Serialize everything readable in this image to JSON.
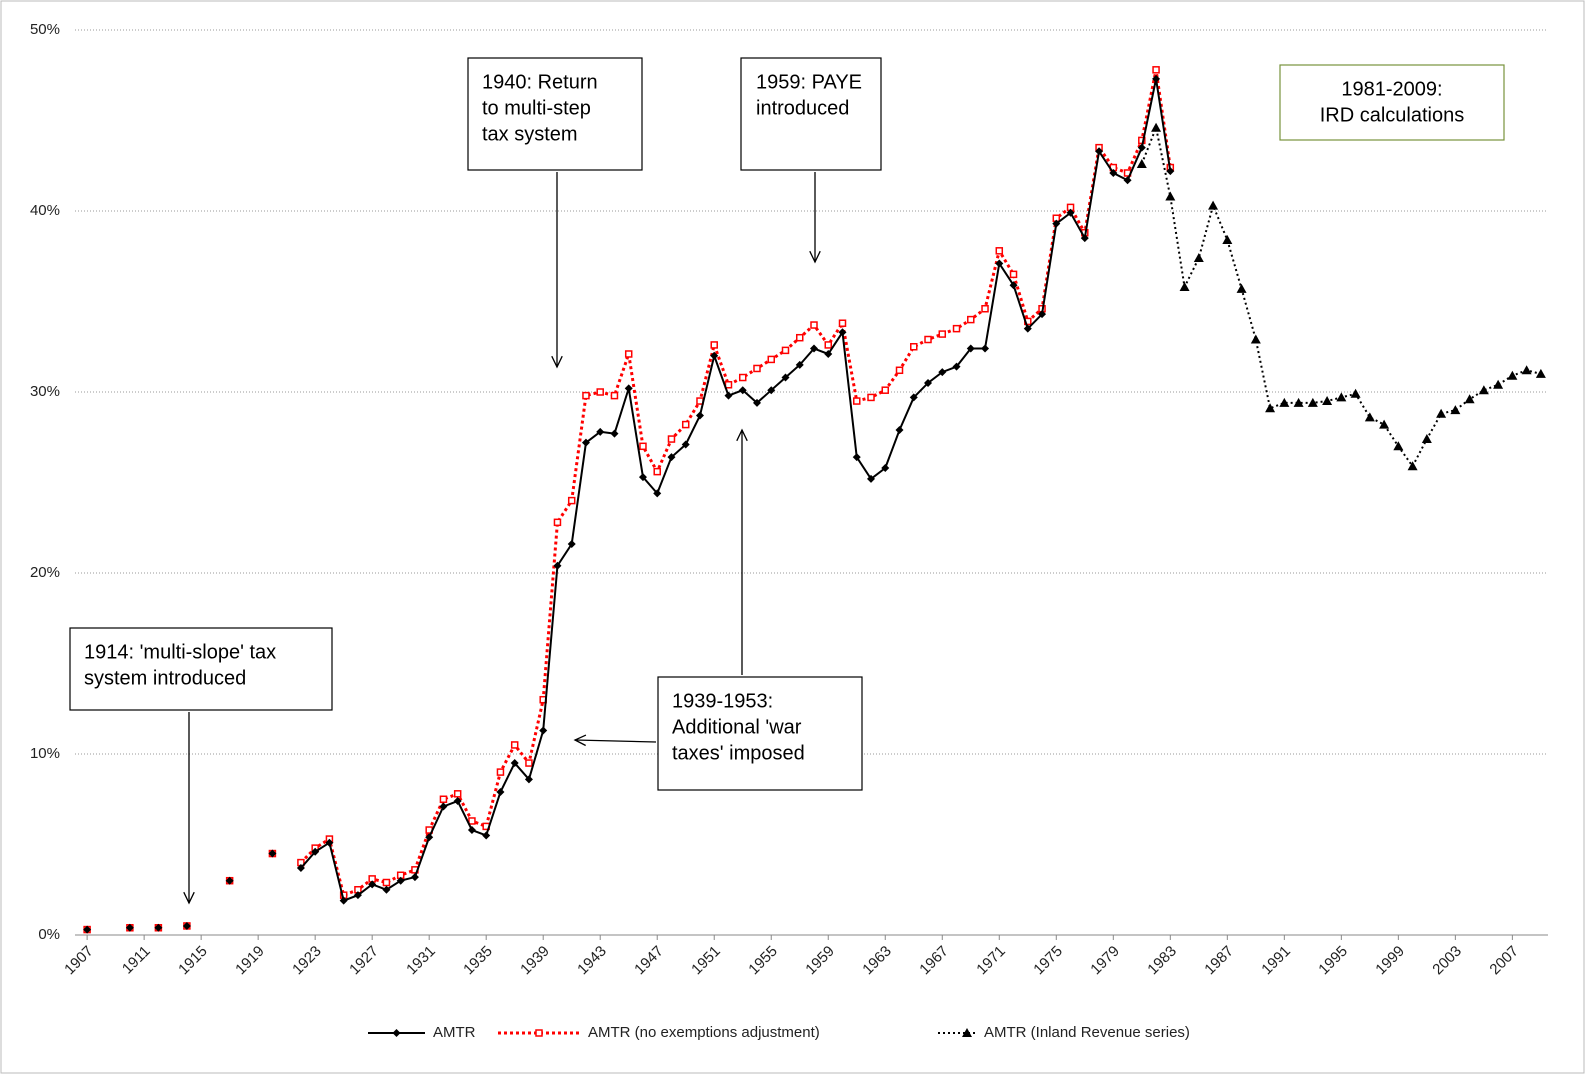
{
  "chart_data": {
    "type": "line",
    "x": [
      1907,
      1908,
      1909,
      1910,
      1911,
      1912,
      1913,
      1914,
      1915,
      1916,
      1917,
      1918,
      1919,
      1920,
      1921,
      1922,
      1923,
      1924,
      1925,
      1926,
      1927,
      1928,
      1929,
      1930,
      1931,
      1932,
      1933,
      1934,
      1935,
      1936,
      1937,
      1938,
      1939,
      1940,
      1941,
      1942,
      1943,
      1944,
      1945,
      1946,
      1947,
      1948,
      1949,
      1950,
      1951,
      1952,
      1953,
      1954,
      1955,
      1956,
      1957,
      1958,
      1959,
      1960,
      1961,
      1962,
      1963,
      1964,
      1965,
      1966,
      1967,
      1968,
      1969,
      1970,
      1971,
      1972,
      1973,
      1974,
      1975,
      1976,
      1977,
      1978,
      1979,
      1980,
      1981,
      1982,
      1983,
      1984,
      1985,
      1986,
      1987,
      1988,
      1989,
      1990,
      1991,
      1992,
      1993,
      1994,
      1995,
      1996,
      1997,
      1998,
      1999,
      2000,
      2001,
      2002,
      2003,
      2004,
      2005,
      2006,
      2007,
      2008,
      2009
    ],
    "series": [
      {
        "name": "AMTR",
        "color": "#000000",
        "line_style": "solid",
        "marker": "diamond",
        "values": [
          0.3,
          null,
          null,
          0.4,
          null,
          0.4,
          null,
          0.5,
          null,
          null,
          3.0,
          null,
          null,
          4.5,
          null,
          3.7,
          4.6,
          5.1,
          1.9,
          2.2,
          2.8,
          2.5,
          3.0,
          3.2,
          5.4,
          7.1,
          7.4,
          5.8,
          5.5,
          7.9,
          9.5,
          8.6,
          11.3,
          20.4,
          21.6,
          27.2,
          27.8,
          27.7,
          30.2,
          25.3,
          24.4,
          26.4,
          27.1,
          28.7,
          32.0,
          29.8,
          30.1,
          29.4,
          30.1,
          30.8,
          31.5,
          32.4,
          32.1,
          33.3,
          26.4,
          25.2,
          25.8,
          27.9,
          29.7,
          30.5,
          31.1,
          31.4,
          32.4,
          32.4,
          37.1,
          35.9,
          33.5,
          34.3,
          39.3,
          39.9,
          38.5,
          43.3,
          42.1,
          41.7,
          43.5,
          47.3,
          42.2,
          null,
          null,
          null,
          null,
          null,
          null,
          null,
          null,
          null,
          null,
          null,
          null,
          null,
          null,
          null,
          null,
          null,
          null,
          null,
          null,
          null,
          null,
          null,
          null,
          null,
          null
        ]
      },
      {
        "name": "AMTR (no exemptions  adjustment)",
        "color": "#ff0000",
        "line_style": "dotted",
        "marker": "square",
        "values": [
          0.3,
          null,
          null,
          0.4,
          null,
          0.4,
          null,
          0.5,
          null,
          null,
          3.0,
          null,
          null,
          4.5,
          null,
          4.0,
          4.8,
          5.3,
          2.2,
          2.5,
          3.1,
          2.9,
          3.3,
          3.6,
          5.8,
          7.5,
          7.8,
          6.3,
          6.0,
          9.0,
          10.5,
          9.5,
          13.0,
          22.8,
          24.0,
          29.8,
          30.0,
          29.8,
          32.1,
          27.0,
          25.6,
          27.4,
          28.2,
          29.5,
          32.6,
          30.4,
          30.8,
          31.3,
          31.8,
          32.3,
          33.0,
          33.7,
          32.6,
          33.8,
          29.5,
          29.7,
          30.1,
          31.2,
          32.5,
          32.9,
          33.2,
          33.5,
          34.0,
          34.6,
          37.8,
          36.5,
          33.9,
          34.6,
          39.6,
          40.2,
          38.8,
          43.5,
          42.4,
          42.1,
          43.9,
          47.8,
          42.4,
          null,
          null,
          null,
          null,
          null,
          null,
          null,
          null,
          null,
          null,
          null,
          null,
          null,
          null,
          null,
          null,
          null,
          null,
          null,
          null,
          null,
          null,
          null,
          null,
          null,
          null
        ]
      },
      {
        "name": "AMTR (Inland Revenue series)",
        "color": "#000000",
        "line_style": "dotted",
        "marker": "triangle",
        "values": [
          null,
          null,
          null,
          null,
          null,
          null,
          null,
          null,
          null,
          null,
          null,
          null,
          null,
          null,
          null,
          null,
          null,
          null,
          null,
          null,
          null,
          null,
          null,
          null,
          null,
          null,
          null,
          null,
          null,
          null,
          null,
          null,
          null,
          null,
          null,
          null,
          null,
          null,
          null,
          null,
          null,
          null,
          null,
          null,
          null,
          null,
          null,
          null,
          null,
          null,
          null,
          null,
          null,
          null,
          null,
          null,
          null,
          null,
          null,
          null,
          null,
          null,
          null,
          null,
          null,
          null,
          null,
          null,
          null,
          null,
          null,
          null,
          null,
          null,
          42.6,
          44.6,
          40.8,
          35.8,
          37.4,
          40.3,
          38.4,
          35.7,
          32.9,
          29.1,
          29.4,
          29.4,
          29.4,
          29.5,
          29.7,
          29.9,
          28.6,
          28.2,
          27.0,
          25.9,
          27.4,
          28.8,
          29.0,
          29.6,
          30.1,
          30.4,
          30.9,
          31.2,
          31.0
        ]
      }
    ],
    "xlim": [
      1906.5,
      2009.5
    ],
    "xticks": [
      1907,
      1911,
      1915,
      1919,
      1923,
      1927,
      1931,
      1935,
      1939,
      1943,
      1947,
      1951,
      1955,
      1959,
      1963,
      1967,
      1971,
      1975,
      1979,
      1983,
      1987,
      1991,
      1995,
      1999,
      2003,
      2007
    ],
    "ylim": [
      0,
      50
    ],
    "yticks": [
      {
        "value": 0,
        "label": "0%"
      },
      {
        "value": 10,
        "label": "10%"
      },
      {
        "value": 20,
        "label": "20%"
      },
      {
        "value": 30,
        "label": "30%"
      },
      {
        "value": 40,
        "label": "40%"
      },
      {
        "value": 50,
        "label": "50%"
      }
    ],
    "grid": true,
    "legend": "bottom",
    "annotations": [
      {
        "lines": [
          "1914: 'multi-slope' tax",
          "system introduced"
        ]
      },
      {
        "lines": [
          "1940: Return",
          "to multi-step",
          "tax system"
        ]
      },
      {
        "lines": [
          "1959: PAYE",
          "introduced"
        ]
      },
      {
        "lines": [
          "1939-1953:",
          "Additional 'war",
          "taxes' imposed"
        ]
      },
      {
        "lines": [
          "1981-2009:",
          "IRD calculations"
        ]
      }
    ]
  }
}
